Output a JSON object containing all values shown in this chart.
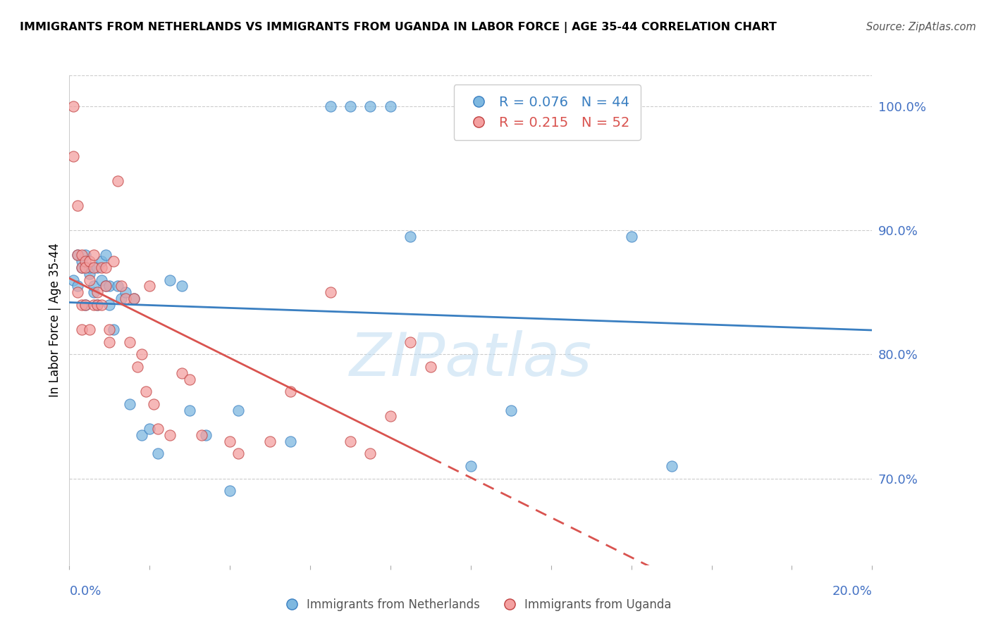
{
  "title": "IMMIGRANTS FROM NETHERLANDS VS IMMIGRANTS FROM UGANDA IN LABOR FORCE | AGE 35-44 CORRELATION CHART",
  "source": "Source: ZipAtlas.com",
  "ylabel": "In Labor Force | Age 35-44",
  "xmin": 0.0,
  "xmax": 0.2,
  "ymin": 0.63,
  "ymax": 1.025,
  "right_yticks": [
    0.7,
    0.8,
    0.9,
    1.0
  ],
  "netherlands_color": "#7eb8e0",
  "uganda_color": "#f4a0a0",
  "netherlands_line_color": "#3a7fc1",
  "uganda_line_color": "#d9534f",
  "netherlands_R": 0.076,
  "netherlands_N": 44,
  "uganda_R": 0.215,
  "uganda_N": 52,
  "watermark": "ZIPatlas",
  "netherlands_x": [
    0.001,
    0.002,
    0.002,
    0.003,
    0.003,
    0.004,
    0.004,
    0.005,
    0.005,
    0.006,
    0.006,
    0.007,
    0.007,
    0.008,
    0.008,
    0.009,
    0.009,
    0.01,
    0.01,
    0.011,
    0.012,
    0.013,
    0.014,
    0.015,
    0.016,
    0.018,
    0.02,
    0.022,
    0.025,
    0.028,
    0.03,
    0.034,
    0.04,
    0.042,
    0.055,
    0.065,
    0.07,
    0.075,
    0.08,
    0.085,
    0.1,
    0.11,
    0.14,
    0.15
  ],
  "netherlands_y": [
    0.86,
    0.855,
    0.88,
    0.87,
    0.875,
    0.88,
    0.84,
    0.865,
    0.87,
    0.85,
    0.855,
    0.87,
    0.84,
    0.875,
    0.86,
    0.88,
    0.855,
    0.84,
    0.855,
    0.82,
    0.855,
    0.845,
    0.85,
    0.76,
    0.845,
    0.735,
    0.74,
    0.72,
    0.86,
    0.855,
    0.755,
    0.735,
    0.69,
    0.755,
    0.73,
    1.0,
    1.0,
    1.0,
    1.0,
    0.895,
    0.71,
    0.755,
    0.895,
    0.71
  ],
  "uganda_x": [
    0.001,
    0.001,
    0.002,
    0.002,
    0.002,
    0.003,
    0.003,
    0.003,
    0.003,
    0.004,
    0.004,
    0.004,
    0.005,
    0.005,
    0.005,
    0.006,
    0.006,
    0.006,
    0.007,
    0.007,
    0.008,
    0.008,
    0.009,
    0.009,
    0.01,
    0.01,
    0.011,
    0.012,
    0.013,
    0.014,
    0.015,
    0.016,
    0.017,
    0.018,
    0.019,
    0.02,
    0.021,
    0.022,
    0.025,
    0.028,
    0.03,
    0.033,
    0.04,
    0.042,
    0.05,
    0.055,
    0.065,
    0.07,
    0.075,
    0.08,
    0.085,
    0.09
  ],
  "uganda_y": [
    1.0,
    0.96,
    0.88,
    0.92,
    0.85,
    0.87,
    0.84,
    0.88,
    0.82,
    0.875,
    0.87,
    0.84,
    0.86,
    0.875,
    0.82,
    0.88,
    0.87,
    0.84,
    0.85,
    0.84,
    0.87,
    0.84,
    0.87,
    0.855,
    0.82,
    0.81,
    0.875,
    0.94,
    0.855,
    0.845,
    0.81,
    0.845,
    0.79,
    0.8,
    0.77,
    0.855,
    0.76,
    0.74,
    0.735,
    0.785,
    0.78,
    0.735,
    0.73,
    0.72,
    0.73,
    0.77,
    0.85,
    0.73,
    0.72,
    0.75,
    0.81,
    0.79
  ]
}
